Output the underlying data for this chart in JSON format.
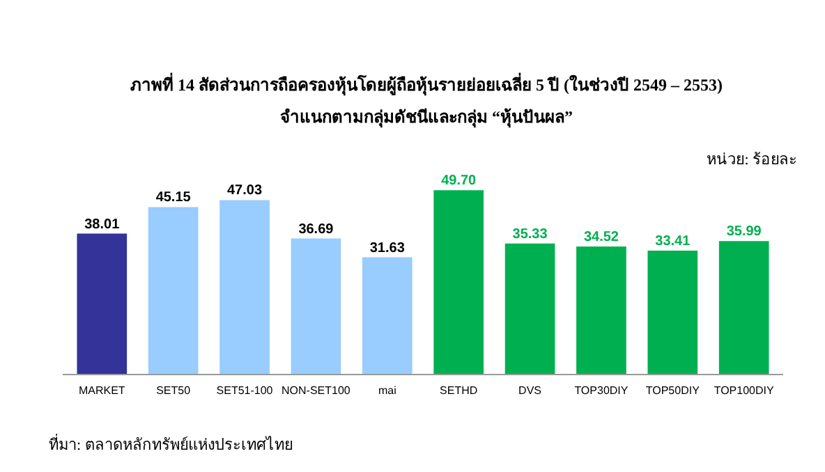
{
  "chart_data": {
    "type": "bar",
    "title": "ภาพที่ 14 สัดส่วนการถือครองหุ้นโดยผู้ถือหุ้นรายย่อยเฉลี่ย 5 ปี (ในช่วงปี 2549 – 2553)",
    "subtitle": "จำแนกตามกลุ่มดัชนีและกลุ่ม “หุ้นปันผล”",
    "categories": [
      "MARKET",
      "SET50",
      "SET51-100",
      "NON-SET100",
      "mai",
      "SETHD",
      "DVS",
      "TOP30DIY",
      "TOP50DIY",
      "TOP100DIY"
    ],
    "values": [
      38.01,
      45.15,
      47.03,
      36.69,
      31.63,
      49.7,
      35.33,
      34.52,
      33.41,
      35.99
    ],
    "colors": [
      "#333399",
      "#99ccff",
      "#99ccff",
      "#99ccff",
      "#99ccff",
      "#00b050",
      "#00b050",
      "#00b050",
      "#00b050",
      "#00b050"
    ],
    "value_labels": [
      "38.01",
      "45.15",
      "47.03",
      "36.69",
      "31.63",
      "49.70",
      "35.33",
      "34.52",
      "33.41",
      "35.99"
    ],
    "annotations": [
      "หน่วย: ร้อยละ",
      "ที่มา: ตลาดหลักทรัพย์แห่งประเทศไทย"
    ]
  }
}
